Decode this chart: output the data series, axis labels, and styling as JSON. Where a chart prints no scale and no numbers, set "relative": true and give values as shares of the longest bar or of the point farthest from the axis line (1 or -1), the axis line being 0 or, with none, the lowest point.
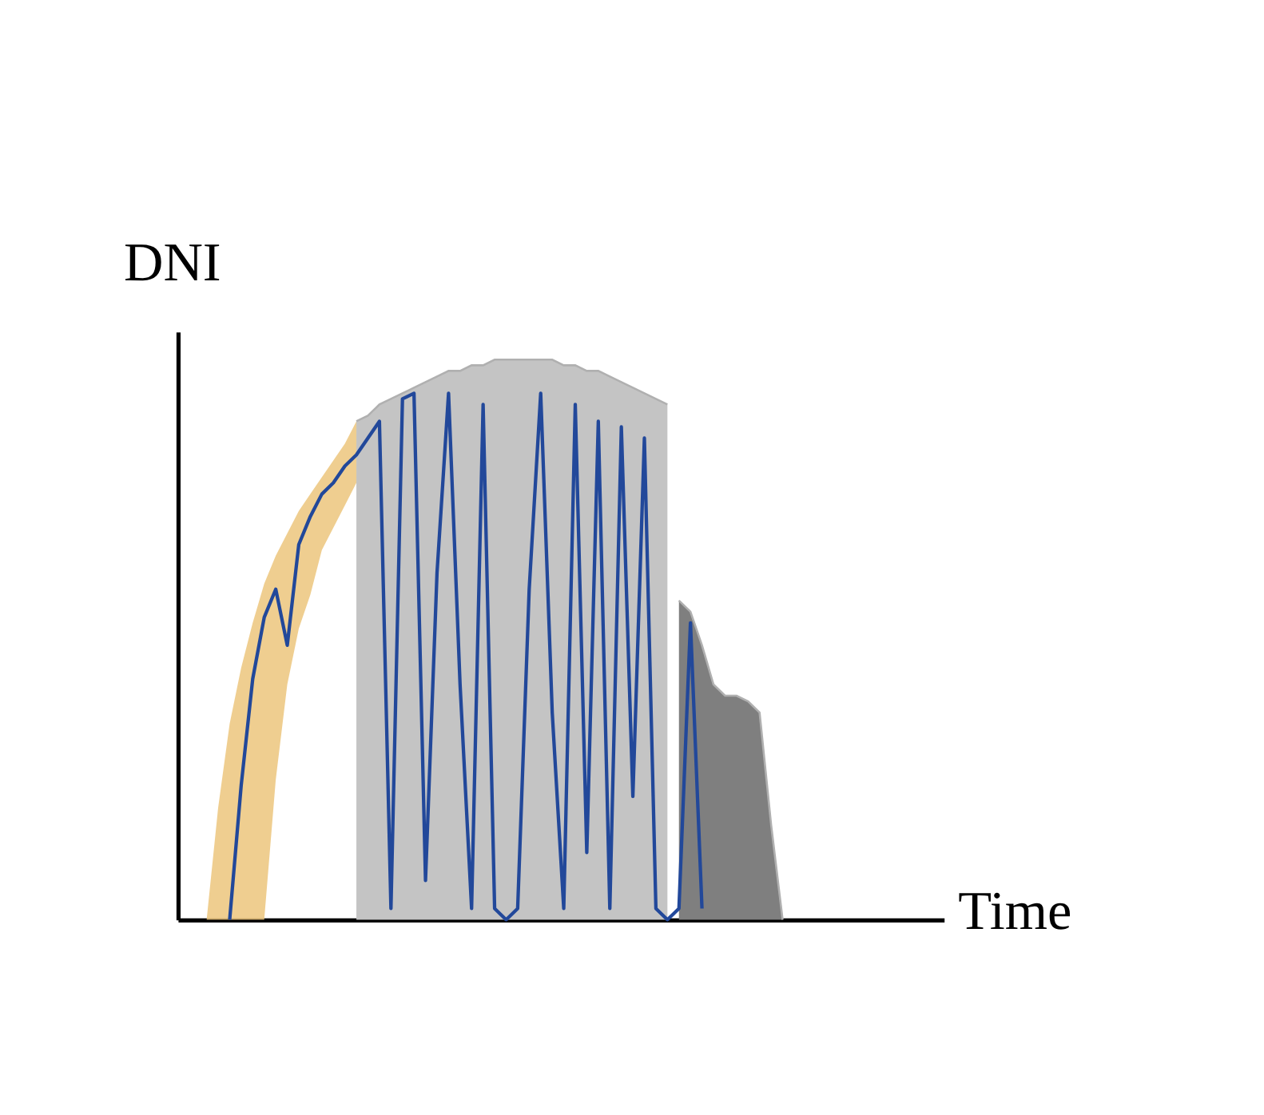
{
  "chart_data": {
    "type": "line",
    "xlabel": "Time",
    "ylabel": "DNI",
    "relative": true,
    "tick_labels": false,
    "categories": [
      null,
      null,
      null,
      null,
      null,
      null,
      null,
      null,
      null,
      null,
      null,
      null,
      null,
      null,
      null,
      null,
      null,
      null,
      null,
      null,
      null,
      null,
      null,
      null,
      null,
      null,
      null,
      null,
      null,
      null,
      null,
      null,
      null,
      null,
      null,
      null,
      null,
      null,
      null,
      null,
      null,
      null,
      null,
      null,
      null,
      null,
      null,
      null,
      null,
      null,
      null,
      null,
      null,
      null,
      null,
      null,
      null,
      null,
      null,
      null,
      null,
      null,
      null,
      null,
      null
    ],
    "series": [
      {
        "type": "area",
        "color": "#c4c4c4",
        "values": [
          null,
          null,
          null,
          null,
          null,
          null,
          null,
          null,
          null,
          null,
          null,
          null,
          null,
          null,
          0.89,
          0.9,
          0.92,
          0.93,
          0.94,
          0.95,
          0.96,
          0.97,
          0.98,
          0.98,
          0.99,
          0.99,
          1.0,
          1.0,
          1.0,
          1.0,
          1.0,
          1.0,
          0.99,
          0.99,
          0.98,
          0.98,
          0.97,
          0.96,
          0.95,
          0.94,
          0.93,
          0.92,
          null,
          null,
          null,
          null,
          null,
          null,
          null,
          null,
          null,
          null,
          null,
          null,
          null,
          null,
          null,
          null,
          null,
          null,
          null,
          null,
          null,
          null,
          null
        ]
      },
      {
        "type": "area",
        "color": "#7f7f7f",
        "values": [
          null,
          null,
          null,
          null,
          null,
          null,
          null,
          null,
          null,
          null,
          null,
          null,
          null,
          null,
          null,
          null,
          null,
          null,
          null,
          null,
          null,
          null,
          null,
          null,
          null,
          null,
          null,
          null,
          null,
          null,
          null,
          null,
          null,
          null,
          null,
          null,
          null,
          null,
          null,
          null,
          null,
          null,
          0.57,
          0.55,
          0.49,
          0.42,
          0.4,
          0.4,
          0.39,
          0.37,
          0.17,
          0.0,
          null,
          null,
          null,
          null,
          null,
          null,
          null,
          null,
          null,
          null,
          null,
          null,
          null
        ]
      },
      {
        "color": "#22489a",
        "values": [
          null,
          null,
          null,
          0.0,
          0.24,
          0.43,
          0.54,
          0.59,
          0.49,
          0.67,
          0.72,
          0.76,
          0.78,
          0.81,
          0.83,
          0.86,
          0.89,
          0.02,
          0.93,
          0.94,
          0.07,
          0.62,
          0.94,
          0.42,
          0.02,
          0.92,
          0.02,
          0.0,
          0.02,
          0.59,
          0.94,
          0.37,
          0.02,
          0.92,
          0.12,
          0.89,
          0.02,
          0.88,
          0.22,
          0.86,
          0.02,
          0.0,
          0.02,
          0.53,
          0.02,
          null,
          null,
          null,
          null,
          null,
          null,
          null,
          null,
          null,
          null,
          null,
          null,
          null,
          null,
          null,
          null,
          null,
          null,
          null,
          null
        ],
        "lower": [
          null,
          0,
          0,
          0,
          0,
          0,
          0,
          0.25,
          0.42,
          0.52,
          0.58,
          0.66,
          0.7,
          0.74,
          0.78,
          null,
          null,
          null,
          null,
          null,
          null,
          null,
          null,
          null,
          null,
          null,
          null,
          null,
          null,
          null,
          null,
          null,
          null,
          null,
          null,
          null,
          null,
          null,
          null,
          null,
          null,
          null,
          null,
          null,
          null,
          null,
          null,
          null,
          null,
          null,
          null,
          null,
          null,
          null,
          null,
          null,
          null,
          null,
          null,
          null,
          null,
          null,
          null,
          null,
          null
        ],
        "upper": [
          null,
          0.0,
          0.2,
          0.35,
          0.45,
          0.53,
          0.6,
          0.65,
          0.69,
          0.73,
          0.76,
          0.79,
          0.82,
          0.85,
          0.89,
          null,
          null,
          null,
          null,
          null,
          null,
          null,
          null,
          null,
          null,
          null,
          null,
          null,
          null,
          null,
          null,
          null,
          null,
          null,
          null,
          null,
          null,
          null,
          null,
          null,
          null,
          null,
          null,
          null,
          null,
          null,
          null,
          null,
          null,
          null,
          null,
          null,
          null,
          null,
          null,
          null,
          null,
          null,
          null,
          null,
          null,
          null,
          null,
          null,
          null
        ]
      }
    ]
  }
}
